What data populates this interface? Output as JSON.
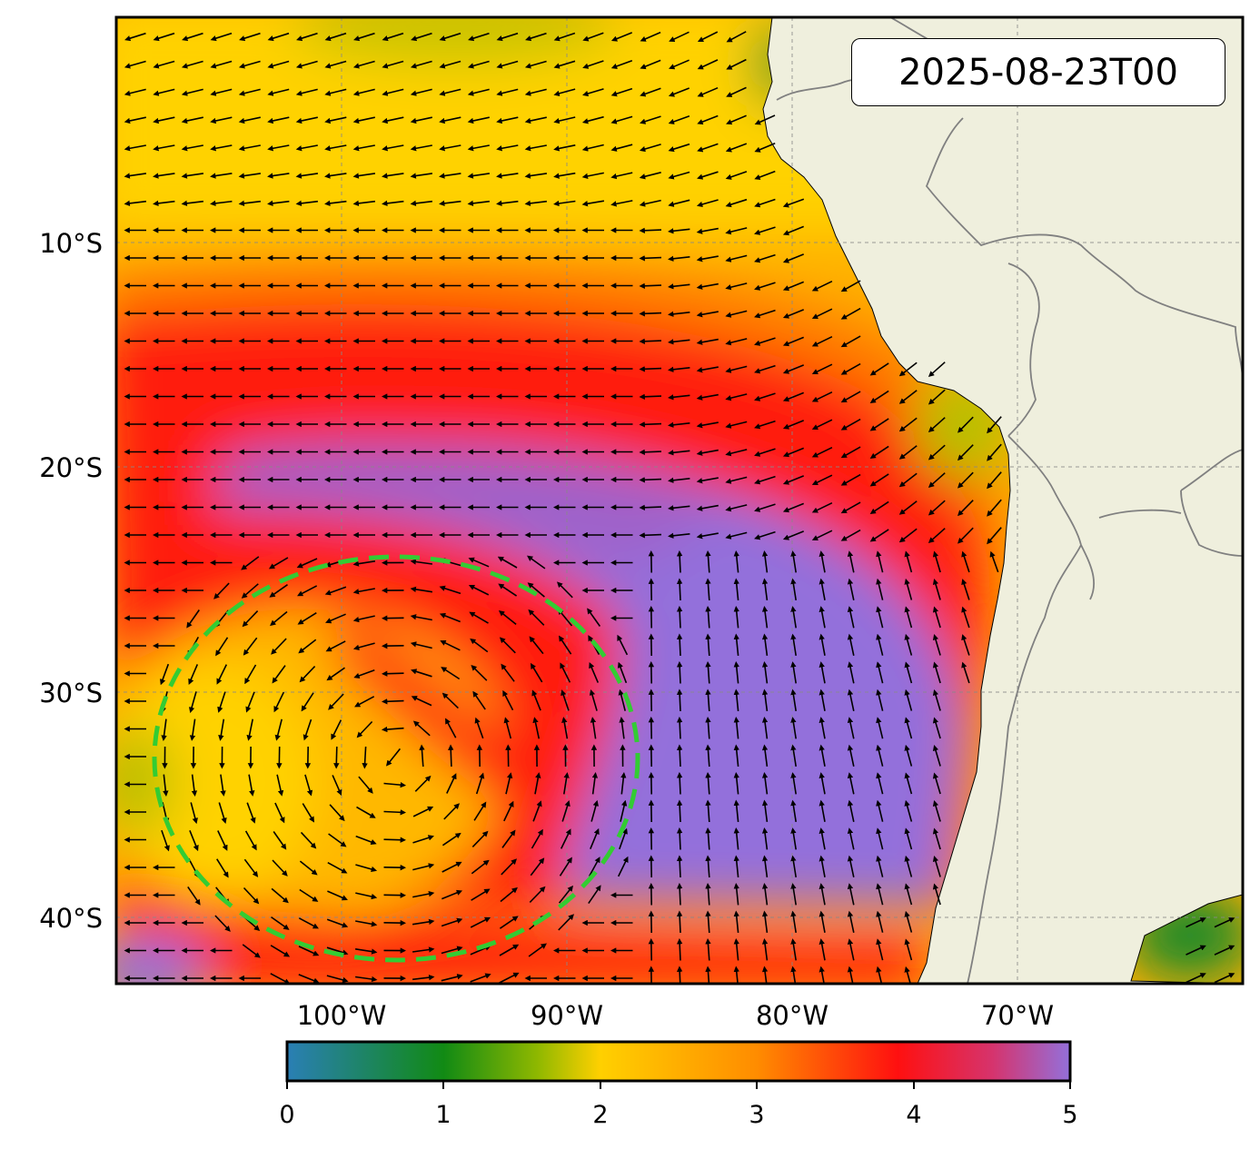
{
  "map": {
    "timestamp": "2025-08-23T00",
    "lat_ticks": [
      "10°S",
      "20°S",
      "30°S",
      "40°S"
    ],
    "lon_ticks": [
      "100°W",
      "90°W",
      "80°W",
      "70°W"
    ],
    "colorbar": {
      "ticks": [
        "0",
        "1",
        "2",
        "3",
        "4",
        "5"
      ],
      "range": [
        0,
        5
      ],
      "colors": [
        "#2a7fb5",
        "#118a14",
        "#6aa50a",
        "#c8c800",
        "#ffd000",
        "#ffa500",
        "#ff5a00",
        "#ff1010",
        "#d4284f",
        "#9370db"
      ]
    },
    "land_color": "#efefdd",
    "highlight_circle_color": "#33cc33"
  }
}
